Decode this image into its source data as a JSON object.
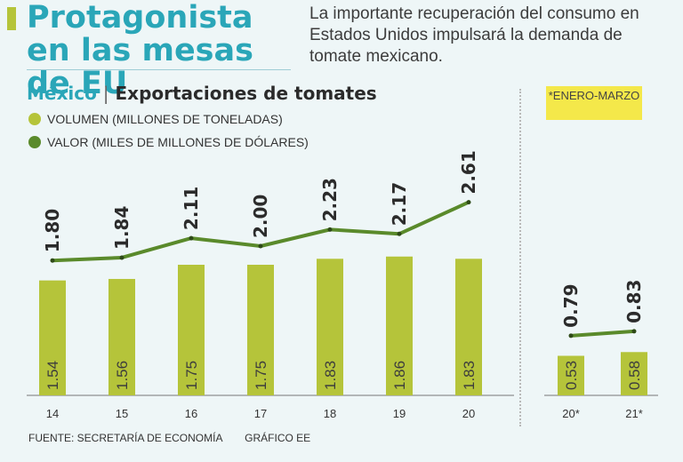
{
  "headline": "Protagonista en las mesas de EU",
  "deck": "La importante recuperación del consumo en Estados Unidos impulsará la demanda de tomate mexicano.",
  "subtitle": {
    "country": "México",
    "separator": "|",
    "topic": "Exportaciones de tomates"
  },
  "legend": [
    {
      "label": "VOLUMEN (MILLONES DE TONELADAS)",
      "color": "#b5c43a"
    },
    {
      "label": "VALOR (MILES DE MILLONES DE DÓLARES)",
      "color": "#5a8a2b"
    }
  ],
  "period_note": "*ENERO-MARZO",
  "footer": {
    "source": "FUENTE: SECRETARÍA DE ECONOMÍA",
    "credit": "GRÁFICO EE"
  },
  "chart_data": [
    {
      "type": "bar+line",
      "title": "Exportaciones de tomates",
      "categories": [
        "14",
        "15",
        "16",
        "17",
        "18",
        "19",
        "20"
      ],
      "series": [
        {
          "name": "VOLUMEN (MILLONES DE TONELADAS)",
          "kind": "bar",
          "color": "#b5c43a",
          "values": [
            1.54,
            1.56,
            1.75,
            1.75,
            1.83,
            1.86,
            1.83
          ],
          "labels": [
            "1.54",
            "1.56",
            "1.75",
            "1.75",
            "1.83",
            "1.86",
            "1.83"
          ]
        },
        {
          "name": "VALOR (MILES DE MILLONES DE DÓLARES)",
          "kind": "line",
          "color": "#5a8a2b",
          "values": [
            1.8,
            1.84,
            2.11,
            2.0,
            2.23,
            2.17,
            2.61
          ],
          "labels": [
            "1.80",
            "1.84",
            "2.11",
            "2.00",
            "2.23",
            "2.17",
            "2.61"
          ]
        }
      ]
    },
    {
      "type": "bar+line",
      "title": "*ENERO-MARZO",
      "categories": [
        "20*",
        "21*"
      ],
      "series": [
        {
          "name": "VOLUMEN (MILLONES DE TONELADAS)",
          "kind": "bar",
          "color": "#b5c43a",
          "values": [
            0.53,
            0.58
          ],
          "labels": [
            "0.53",
            "0.58"
          ]
        },
        {
          "name": "VALOR (MILES DE MILLONES DE DÓLARES)",
          "kind": "line",
          "color": "#5a8a2b",
          "values": [
            0.79,
            0.83
          ],
          "labels": [
            "0.79",
            "0.83"
          ]
        }
      ]
    }
  ]
}
